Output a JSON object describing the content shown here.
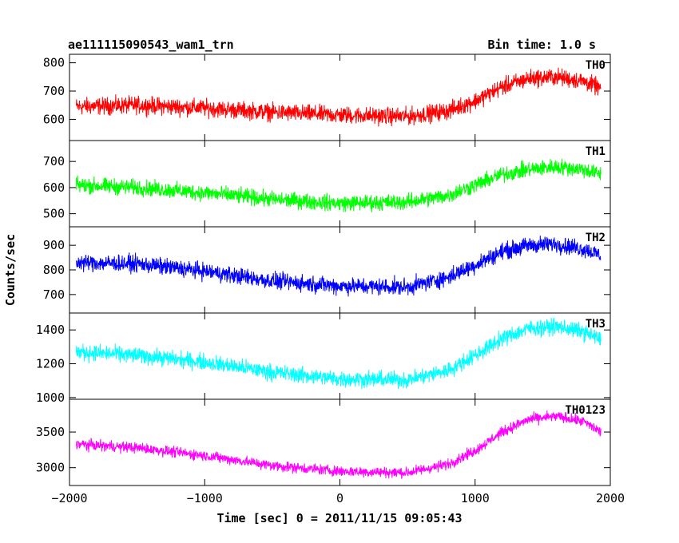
{
  "header": {
    "title": "ae111115090543_wam1_trn",
    "bin_time": "Bin time: 1.0 s"
  },
  "axes": {
    "xlabel": "Time [sec] 0 = 2011/11/15 09:05:43",
    "ylabel": "Counts/sec",
    "xlim": [
      -2000,
      2000
    ],
    "xticks": [
      -2000,
      -1000,
      0,
      1000,
      2000
    ],
    "xtick_labels": [
      "−2000",
      "−1000",
      "0",
      "1000",
      "2000"
    ]
  },
  "chart_data": {
    "type": "line",
    "x_range": [
      -1950,
      1930
    ],
    "grid": false,
    "panels": [
      {
        "label": "TH0",
        "color": "#ff0000",
        "ylim": [
          525,
          830
        ],
        "yticks": [
          600,
          700,
          800
        ],
        "trend": {
          "x": [
            -1950,
            -1500,
            -1000,
            -500,
            0,
            500,
            800,
            1000,
            1200,
            1400,
            1600,
            1800,
            1930
          ],
          "y": [
            645,
            650,
            640,
            625,
            615,
            610,
            630,
            665,
            715,
            745,
            750,
            735,
            710
          ]
        },
        "noise_amplitude": 45
      },
      {
        "label": "TH1",
        "color": "#00ff00",
        "ylim": [
          450,
          780
        ],
        "yticks": [
          500,
          600,
          700
        ],
        "trend": {
          "x": [
            -1950,
            -1500,
            -1000,
            -500,
            0,
            500,
            800,
            1000,
            1200,
            1400,
            1600,
            1800,
            1930
          ],
          "y": [
            610,
            600,
            580,
            555,
            540,
            545,
            570,
            610,
            650,
            670,
            680,
            670,
            650
          ]
        },
        "noise_amplitude": 45
      },
      {
        "label": "TH2",
        "color": "#0000ff",
        "ylim": [
          625,
          975
        ],
        "yticks": [
          700,
          800,
          900
        ],
        "trend": {
          "x": [
            -1950,
            -1500,
            -1000,
            -500,
            0,
            500,
            800,
            1000,
            1200,
            1400,
            1600,
            1800,
            1930
          ],
          "y": [
            830,
            825,
            795,
            755,
            735,
            730,
            770,
            820,
            875,
            900,
            905,
            885,
            860
          ]
        },
        "noise_amplitude": 50
      },
      {
        "label": "TH3",
        "color": "#00ffff",
        "ylim": [
          990,
          1500
        ],
        "yticks": [
          1000,
          1200,
          1400
        ],
        "trend": {
          "x": [
            -1950,
            -1500,
            -1000,
            -500,
            0,
            500,
            800,
            1000,
            1200,
            1400,
            1600,
            1800,
            1930
          ],
          "y": [
            1270,
            1250,
            1210,
            1150,
            1110,
            1105,
            1160,
            1250,
            1350,
            1410,
            1420,
            1390,
            1340
          ]
        },
        "noise_amplitude": 70
      },
      {
        "label": "TH0123",
        "color": "#ff00ff",
        "ylim": [
          2750,
          3960
        ],
        "yticks": [
          3000,
          3500
        ],
        "trend": {
          "x": [
            -1950,
            -1500,
            -1000,
            -500,
            0,
            500,
            800,
            1000,
            1200,
            1400,
            1600,
            1800,
            1930
          ],
          "y": [
            3330,
            3280,
            3170,
            3030,
            2950,
            2930,
            3050,
            3240,
            3500,
            3680,
            3720,
            3650,
            3500
          ]
        },
        "noise_amplitude": 110
      }
    ]
  }
}
